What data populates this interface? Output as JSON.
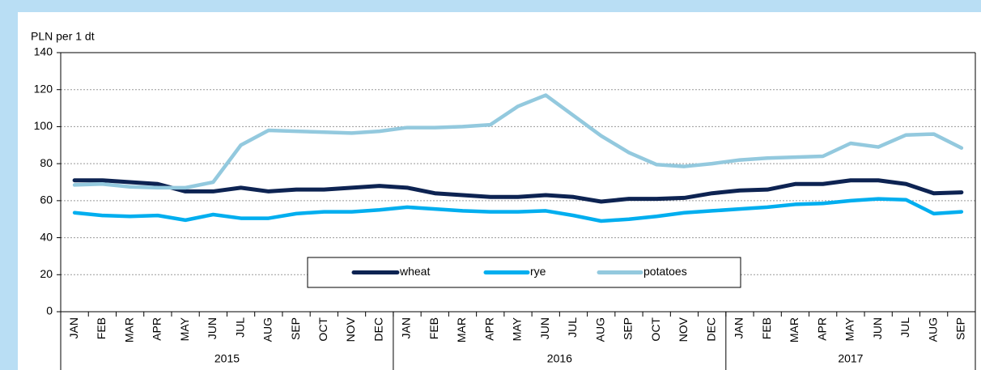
{
  "chart_data": {
    "type": "line",
    "y_label": "PLN per 1 dt",
    "categories": [
      "JAN",
      "FEB",
      "MAR",
      "APR",
      "MAY",
      "JUN",
      "JUL",
      "AUG",
      "SEP",
      "OCT",
      "NOV",
      "DEC",
      "JAN",
      "FEB",
      "MAR",
      "APR",
      "MAY",
      "JUN",
      "JUL",
      "AUG",
      "SEP",
      "OCT",
      "NOV",
      "DEC",
      "JAN",
      "FEB",
      "MAR",
      "APR",
      "MAY",
      "JUN",
      "JUL",
      "AUG",
      "SEP"
    ],
    "years": [
      "2015",
      "2016",
      "2017"
    ],
    "series": [
      {
        "name": "wheat",
        "color": "#0d2352",
        "values": [
          71,
          71,
          70,
          69,
          65,
          65,
          67,
          65,
          66,
          66,
          67,
          68,
          67,
          64,
          63,
          62,
          62,
          63,
          62,
          59.5,
          61,
          61,
          61.5,
          64,
          65.5,
          66,
          69,
          69,
          71,
          71,
          69,
          64,
          64.5
        ]
      },
      {
        "name": "rye",
        "color": "#00aeef",
        "values": [
          53.5,
          52,
          51.5,
          52,
          49.5,
          52.5,
          50.5,
          50.5,
          53,
          54,
          54,
          55,
          56.5,
          55.5,
          54.5,
          54,
          54,
          54.5,
          52,
          49,
          50,
          51.5,
          53.5,
          54.5,
          55.5,
          56.5,
          58,
          58.5,
          60,
          61,
          60.5,
          53,
          54
        ]
      },
      {
        "name": "potatoes",
        "color": "#93c9de",
        "values": [
          68.5,
          69,
          67.5,
          67,
          67,
          70,
          90,
          98,
          97.5,
          97,
          96.5,
          97.5,
          99.5,
          99.5,
          100,
          101,
          111,
          117,
          106,
          95,
          86,
          79.5,
          78.5,
          80,
          82,
          83,
          83.5,
          84,
          91,
          89,
          95.5,
          96,
          88.5
        ]
      }
    ],
    "ylim": [
      0,
      140
    ],
    "yticks": [
      0,
      20,
      40,
      60,
      80,
      100,
      120,
      140
    ],
    "grid": true
  }
}
